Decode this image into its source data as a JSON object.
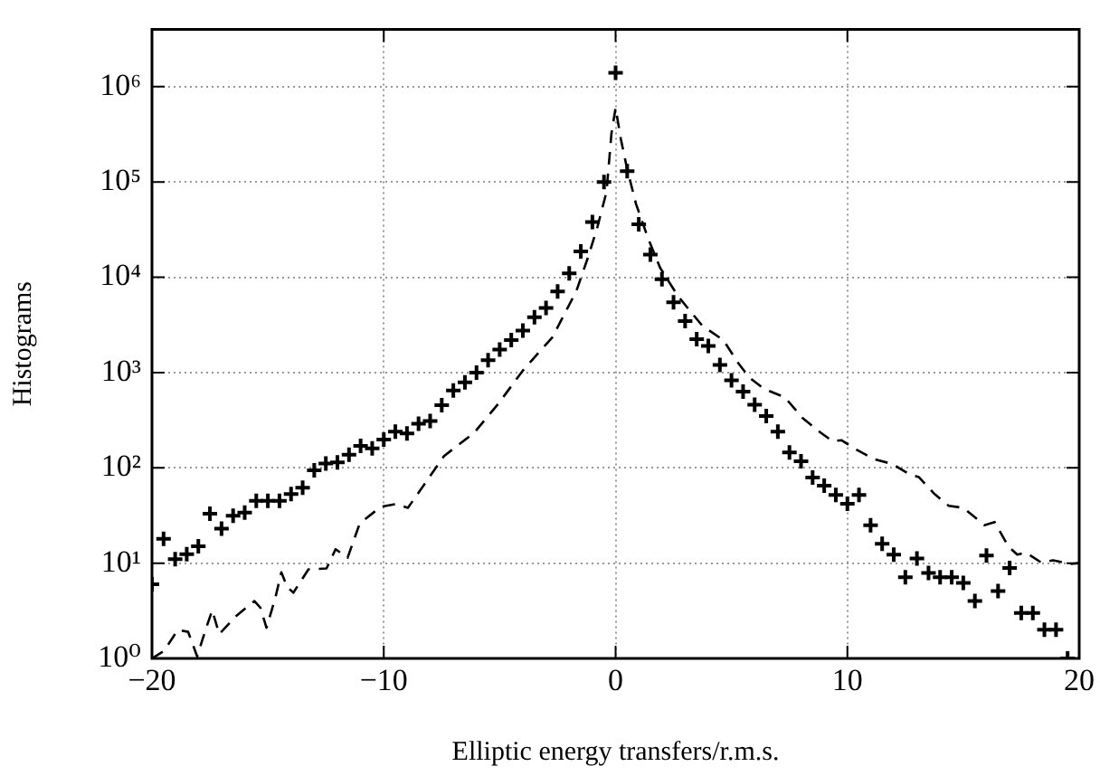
{
  "chart_data": {
    "type": "scatter",
    "xlabel": "Elliptic energy transfers/r.m.s.",
    "ylabel": "Histograms",
    "xlim": [
      -20,
      20
    ],
    "xticks": [
      {
        "value": -20,
        "label": "−20"
      },
      {
        "value": -10,
        "label": "−10"
      },
      0,
      10,
      20
    ],
    "ylim": [
      1,
      4000000
    ],
    "yticks": [
      {
        "value": 1,
        "label": "10⁰"
      },
      {
        "value": 10,
        "label": "10¹"
      },
      {
        "value": 100,
        "label": "10²"
      },
      {
        "value": 1000,
        "label": "10³"
      },
      {
        "value": 10000,
        "label": "10⁴"
      },
      {
        "value": 100000,
        "label": "10⁵"
      },
      {
        "value": 1000000,
        "label": "10⁶"
      }
    ],
    "log": "y",
    "grid": true,
    "series": [
      {
        "type": "scatter",
        "marker": "cross",
        "color": "#000000",
        "x": [
          -20,
          -19.5,
          -19,
          -18.5,
          -18,
          -17.5,
          -17,
          -16.5,
          -16,
          -15.5,
          -15,
          -14.5,
          -14,
          -13.5,
          -13,
          -12.5,
          -12,
          -11.5,
          -11,
          -10.5,
          -10,
          -9.5,
          -9,
          -8.5,
          -8,
          -7.5,
          -7,
          -6.5,
          -6,
          -5.5,
          -5,
          -4.5,
          -4,
          -3.5,
          -3,
          -2.5,
          -2,
          -1.5,
          -1,
          -0.5,
          0,
          0.5,
          1,
          1.5,
          2,
          2.5,
          3,
          3.5,
          4,
          4.5,
          5,
          5.5,
          6,
          6.5,
          7,
          7.5,
          8,
          8.5,
          9,
          9.5,
          10,
          10.5,
          11,
          11.5,
          12,
          12.5,
          13,
          13.5,
          14,
          14.5,
          15,
          15.5,
          16,
          16.5,
          17,
          17.5,
          18,
          18.5,
          19,
          19.5
        ],
        "values": [
          6,
          18,
          11,
          12.4,
          15,
          33,
          23,
          31.5,
          34,
          45,
          45,
          45,
          53,
          62,
          94,
          111,
          114,
          137,
          170,
          160,
          198,
          240,
          230,
          290,
          310,
          455,
          650,
          790,
          1000,
          1350,
          1740,
          2190,
          2760,
          3810,
          4760,
          7080,
          11000,
          18700,
          38000,
          100000,
          1400000,
          130000,
          36000,
          17300,
          9550,
          5450,
          3470,
          2240,
          1900,
          1200,
          830,
          630,
          460,
          350,
          240,
          145,
          117,
          79,
          65,
          52,
          42,
          52,
          25,
          16,
          12.3,
          7.1,
          11.2,
          7.9,
          7.1,
          7.1,
          6.2,
          4,
          12,
          5.1,
          8.9,
          3,
          3,
          2,
          2,
          1
        ]
      },
      {
        "type": "line",
        "marker": "none",
        "line_style": "dashed",
        "color": "#000000",
        "x": [
          -20,
          -19.48,
          -18.88,
          -18.44,
          -18.05,
          -17.66,
          -17.4,
          -17.1,
          -16.36,
          -15.58,
          -15.32,
          -15.06,
          -14.68,
          -14.42,
          -14.16,
          -13.9,
          -13.25,
          -12.47,
          -12.08,
          -11.56,
          -11.04,
          -10.13,
          -9.48,
          -8.96,
          -8.18,
          -7.4,
          -6.1,
          -5.06,
          -4,
          -2.73,
          -2.21,
          -1.69,
          -1.17,
          -0.78,
          -0.39,
          -0.18,
          0,
          0.23,
          0.49,
          0.88,
          1.4,
          1.92,
          2.7,
          3.74,
          4.65,
          5.3,
          5.76,
          6.4,
          7.3,
          8.07,
          8.84,
          9.36,
          9.74,
          10.39,
          11.16,
          11.93,
          12.7,
          13.08,
          13.73,
          14.37,
          15.01,
          15.91,
          16.35,
          16.94,
          17.33,
          17.71,
          18.35,
          18.87,
          19.64,
          20
        ],
        "values": [
          1,
          1.2,
          2,
          1.9,
          1.05,
          2.1,
          3.2,
          1.8,
          2.8,
          4,
          3.4,
          2.1,
          4.3,
          8,
          5.6,
          4.9,
          8.6,
          8.8,
          14,
          11.4,
          26,
          39,
          41.6,
          38,
          71,
          133,
          234,
          470,
          1050,
          2340,
          4100,
          7200,
          16700,
          34000,
          79000,
          320000,
          600000,
          280000,
          140000,
          59000,
          25700,
          12600,
          6300,
          3100,
          2190,
          1250,
          890,
          675,
          550,
          333,
          235,
          190,
          195,
          155,
          123,
          110,
          85,
          80,
          54,
          40,
          38,
          25,
          27,
          15,
          12.3,
          12.9,
          10.2,
          10.7,
          9.8,
          10
        ]
      }
    ]
  }
}
